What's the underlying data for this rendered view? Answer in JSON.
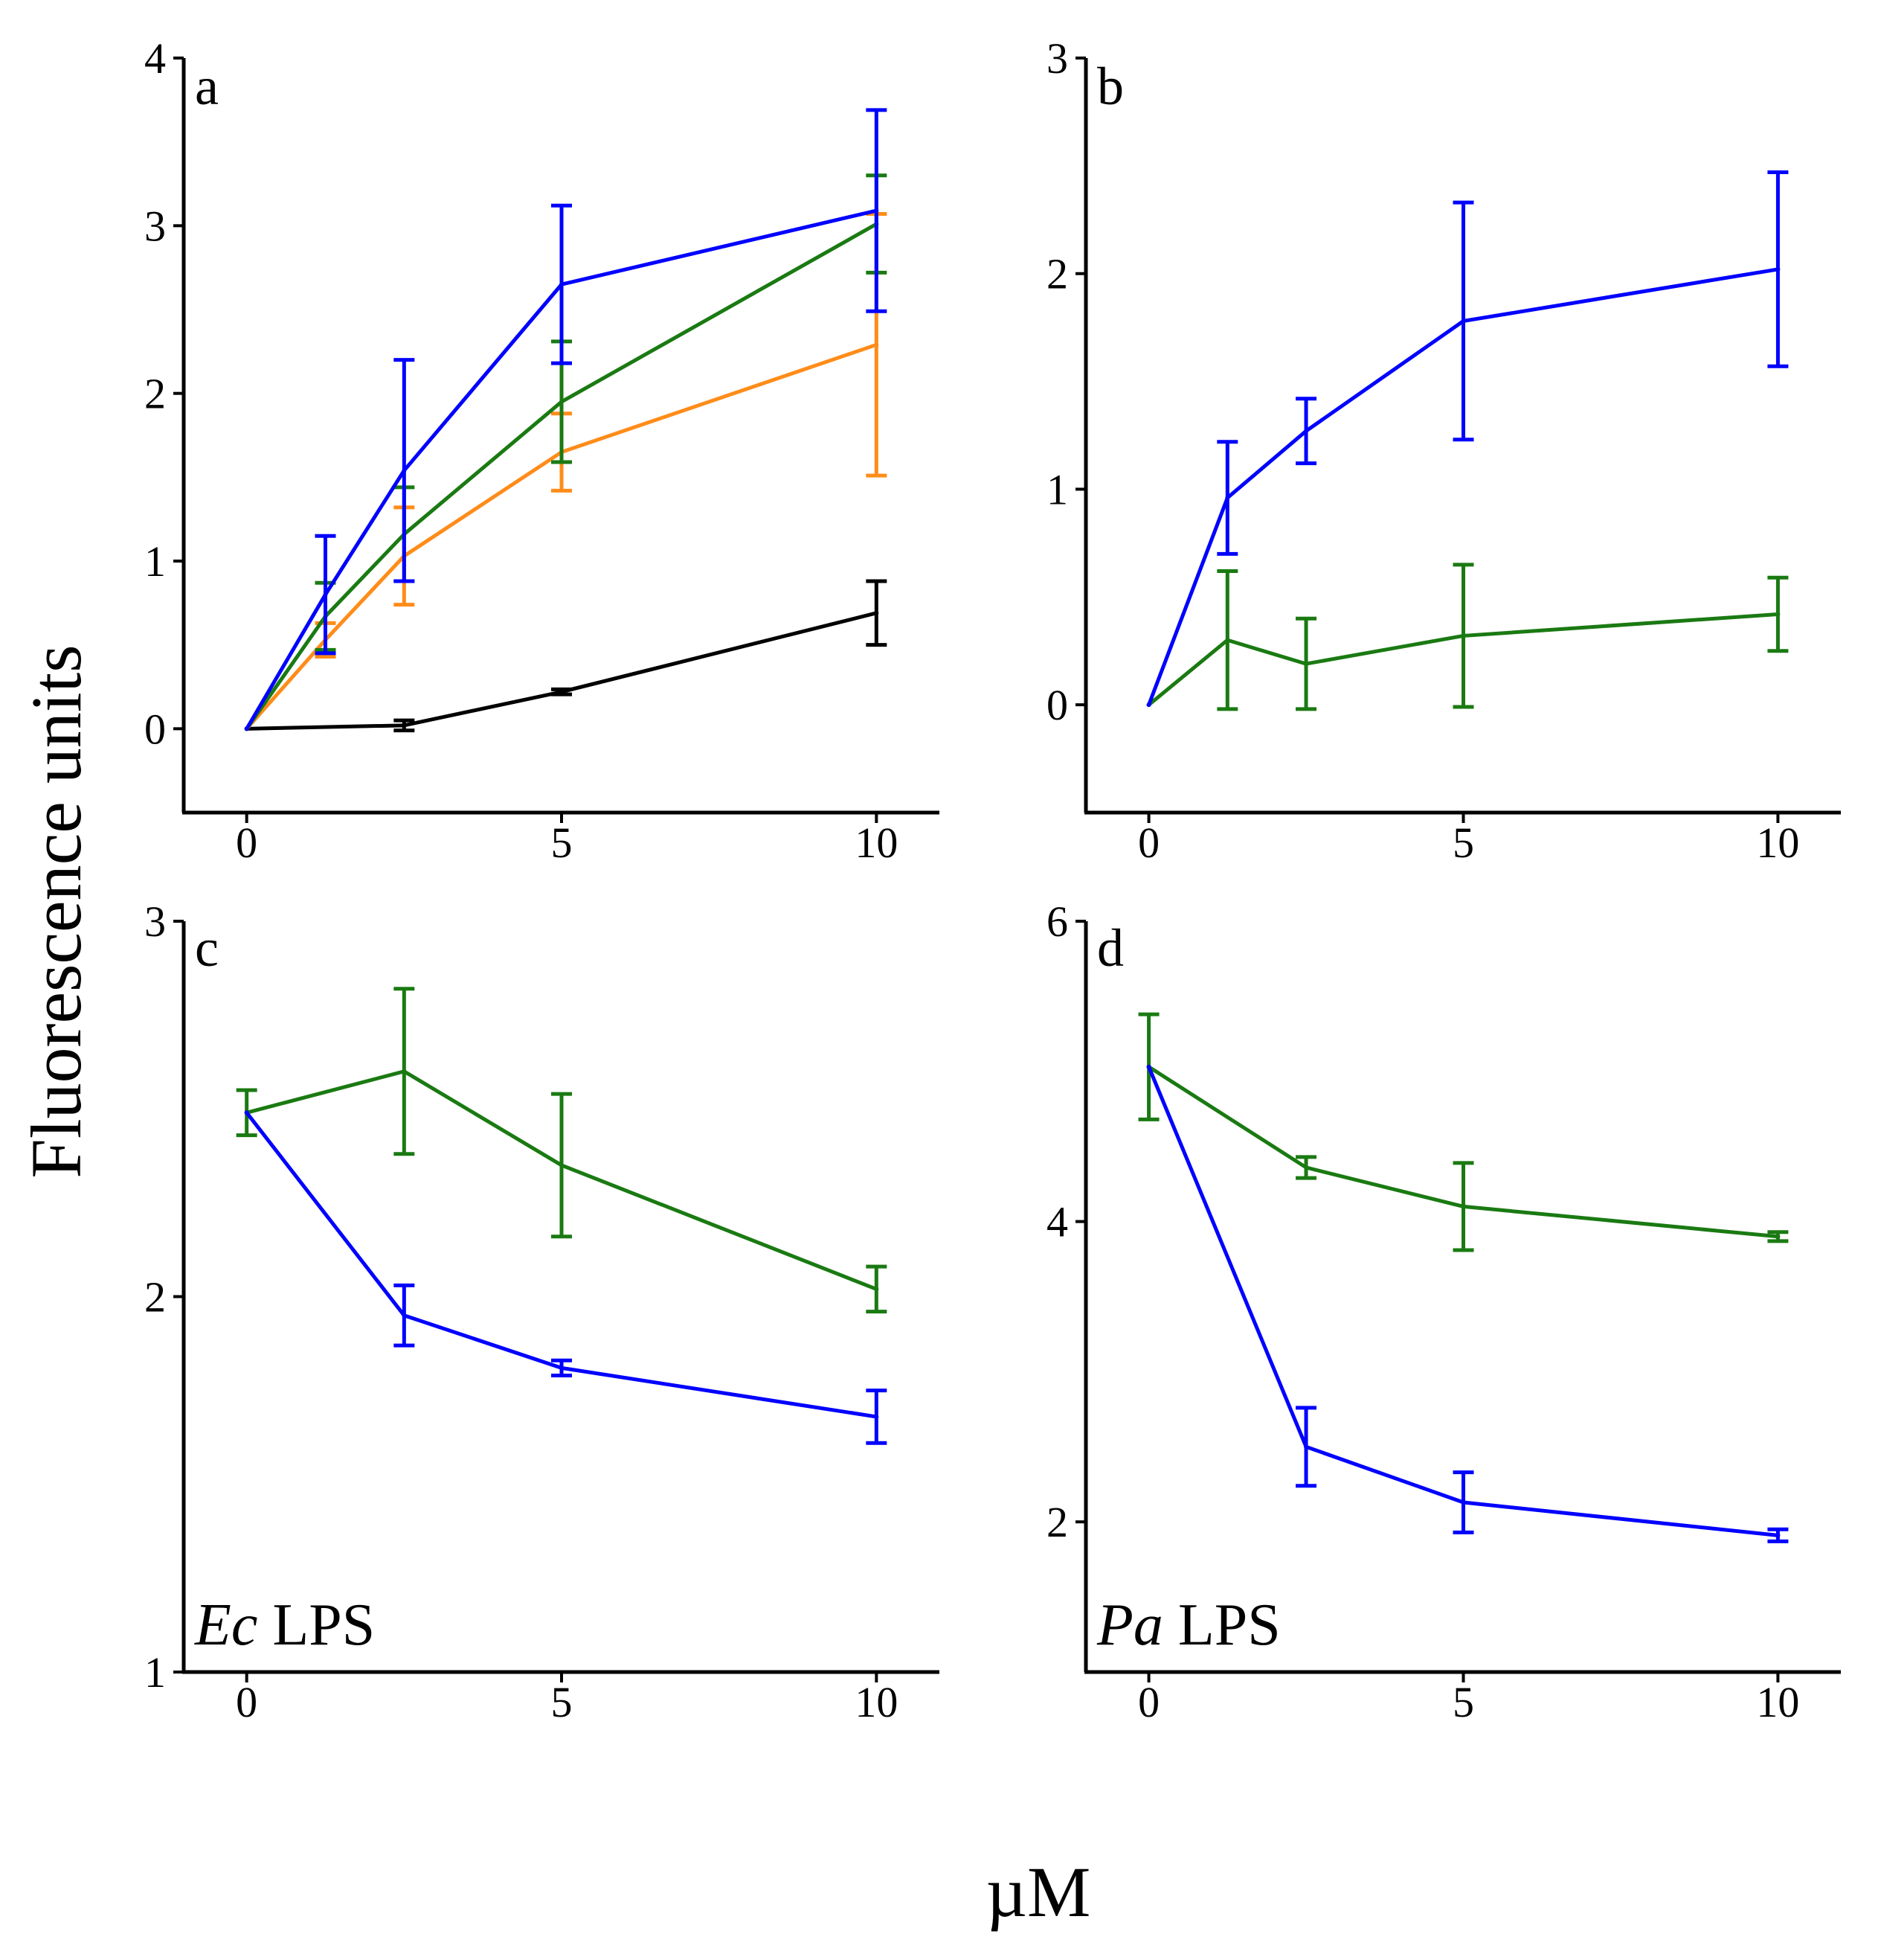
{
  "figure": {
    "ylabel": "Fluorescence units",
    "xlabel": "µM"
  },
  "colors": {
    "blue": "#0000ff",
    "green": "#1a7a12",
    "orange": "#ff8c19",
    "black": "#000000",
    "axis": "#000000"
  },
  "chart_data": [
    {
      "id": "a",
      "type": "line",
      "panel_label": "a",
      "xlim": [
        -1,
        11
      ],
      "ylim": [
        -0.5,
        4
      ],
      "xticks": [
        0,
        5,
        10
      ],
      "yticks": [
        0,
        1,
        2,
        3,
        4
      ],
      "annotation": null,
      "series": [
        {
          "color": "black",
          "x": [
            0,
            2.5,
            5,
            10
          ],
          "y": [
            0,
            0.02,
            0.22,
            0.69
          ],
          "err": [
            0,
            0.03,
            0.015,
            0.19
          ]
        },
        {
          "color": "orange",
          "x": [
            0,
            1.25,
            2.5,
            5,
            10
          ],
          "y": [
            0,
            0.53,
            1.03,
            1.65,
            2.29
          ],
          "err": [
            0,
            0.1,
            0.29,
            0.23,
            0.78
          ]
        },
        {
          "color": "green",
          "x": [
            0,
            1.25,
            2.5,
            5,
            10
          ],
          "y": [
            0,
            0.67,
            1.16,
            1.95,
            3.01
          ],
          "err": [
            0,
            0.2,
            0.28,
            0.36,
            0.29
          ]
        },
        {
          "color": "blue",
          "x": [
            0,
            1.25,
            2.5,
            5,
            10
          ],
          "y": [
            0,
            0.8,
            1.54,
            2.65,
            3.09
          ],
          "err": [
            0,
            0.35,
            0.66,
            0.47,
            0.6
          ]
        }
      ]
    },
    {
      "id": "b",
      "type": "line",
      "panel_label": "b",
      "xlim": [
        -1,
        11
      ],
      "ylim": [
        -0.5,
        3
      ],
      "xticks": [
        0,
        5,
        10
      ],
      "yticks": [
        0,
        1,
        2,
        3
      ],
      "annotation": null,
      "series": [
        {
          "color": "green",
          "x": [
            0,
            1.25,
            2.5,
            5,
            10
          ],
          "y": [
            0,
            0.3,
            0.19,
            0.32,
            0.42
          ],
          "err": [
            0,
            0.32,
            0.21,
            0.33,
            0.17
          ]
        },
        {
          "color": "blue",
          "x": [
            0,
            1.25,
            2.5,
            5,
            10
          ],
          "y": [
            0,
            0.96,
            1.27,
            1.78,
            2.02
          ],
          "err": [
            0,
            0.26,
            0.15,
            0.55,
            0.45
          ]
        }
      ]
    },
    {
      "id": "c",
      "type": "line",
      "panel_label": "c",
      "xlim": [
        -1,
        11
      ],
      "ylim": [
        1,
        3
      ],
      "xticks": [
        0,
        5,
        10
      ],
      "yticks": [
        1,
        2,
        3
      ],
      "annotation": {
        "italic": "Ec",
        "rest": " LPS"
      },
      "series": [
        {
          "color": "green",
          "x": [
            0,
            2.5,
            5,
            10
          ],
          "y": [
            2.49,
            2.6,
            2.35,
            2.02
          ],
          "err": [
            0.06,
            0.22,
            0.19,
            0.06
          ]
        },
        {
          "color": "blue",
          "x": [
            0,
            2.5,
            5,
            10
          ],
          "y": [
            2.49,
            1.95,
            1.81,
            1.68
          ],
          "err": [
            0,
            0.08,
            0.02,
            0.07
          ]
        }
      ]
    },
    {
      "id": "d",
      "type": "line",
      "panel_label": "d",
      "xlim": [
        -1,
        11
      ],
      "ylim": [
        1,
        6
      ],
      "xticks": [
        0,
        5,
        10
      ],
      "yticks": [
        2,
        4,
        6
      ],
      "annotation": {
        "italic": "Pa",
        "rest": " LPS"
      },
      "series": [
        {
          "color": "green",
          "x": [
            0,
            2.5,
            5,
            10
          ],
          "y": [
            5.03,
            4.36,
            4.1,
            3.9
          ],
          "err": [
            0.35,
            0.07,
            0.29,
            0.03
          ]
        },
        {
          "color": "blue",
          "x": [
            0,
            2.5,
            5,
            10
          ],
          "y": [
            5.03,
            2.5,
            2.13,
            1.91
          ],
          "err": [
            0,
            0.26,
            0.2,
            0.04
          ]
        }
      ]
    }
  ]
}
